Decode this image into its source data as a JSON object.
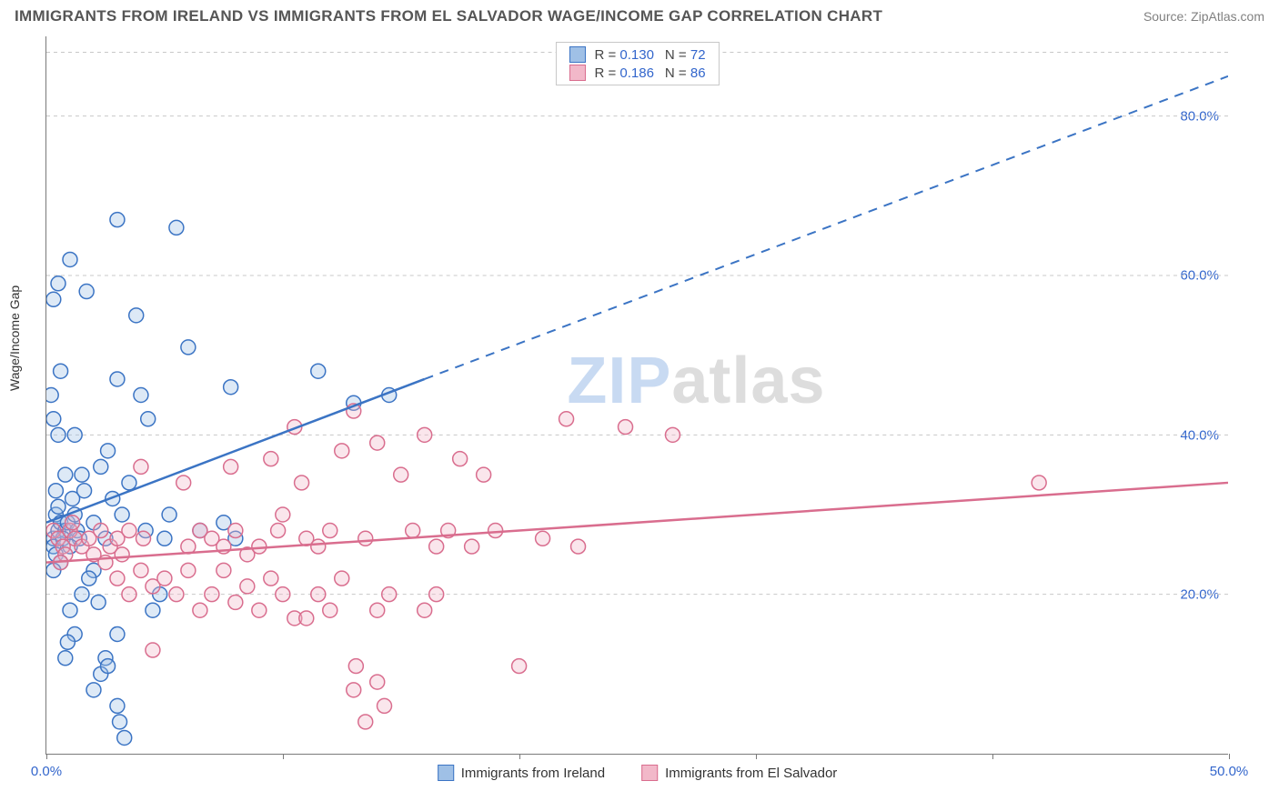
{
  "title": "IMMIGRANTS FROM IRELAND VS IMMIGRANTS FROM EL SALVADOR WAGE/INCOME GAP CORRELATION CHART",
  "source_label": "Source: ",
  "source_value": "ZipAtlas.com",
  "y_axis_label": "Wage/Income Gap",
  "watermark": {
    "part1": "ZIP",
    "part2": "atlas"
  },
  "chart": {
    "type": "scatter",
    "background_color": "#ffffff",
    "grid_color": "#c8c8c8",
    "axis_color": "#7a7a7a",
    "tick_label_color": "#3366cc",
    "xlim": [
      0,
      50
    ],
    "ylim": [
      0,
      90
    ],
    "x_ticks": [
      0,
      10,
      20,
      30,
      40,
      50
    ],
    "x_tick_labels": [
      "0.0%",
      "",
      "",
      "",
      "",
      "50.0%"
    ],
    "y_ticks": [
      20,
      40,
      60,
      80
    ],
    "y_tick_labels": [
      "20.0%",
      "40.0%",
      "60.0%",
      "80.0%"
    ],
    "marker_radius": 8,
    "marker_stroke_width": 1.5,
    "marker_fill_opacity": 0.35,
    "line_width": 2.5
  },
  "series": {
    "ireland": {
      "label": "Immigrants from Ireland",
      "color_stroke": "#3b74c4",
      "color_fill": "#9fc0e6",
      "R": "0.130",
      "N": "72",
      "trend_solid": {
        "x1": 0,
        "y1": 29,
        "x2": 16,
        "y2": 47
      },
      "trend_dashed": {
        "x1": 16,
        "y1": 47,
        "x2": 50,
        "y2": 85
      },
      "points": [
        [
          0.3,
          27
        ],
        [
          0.5,
          28
        ],
        [
          0.4,
          30
        ],
        [
          0.6,
          29
        ],
        [
          0.8,
          28
        ],
        [
          0.3,
          26
        ],
        [
          0.5,
          31
        ],
        [
          0.7,
          27
        ],
        [
          0.4,
          33
        ],
        [
          0.9,
          29
        ],
        [
          0.3,
          57
        ],
        [
          0.5,
          59
        ],
        [
          1.0,
          62
        ],
        [
          1.2,
          30
        ],
        [
          1.3,
          28
        ],
        [
          1.1,
          32
        ],
        [
          0.4,
          25
        ],
        [
          0.6,
          24
        ],
        [
          0.3,
          23
        ],
        [
          1.4,
          27
        ],
        [
          1.0,
          26
        ],
        [
          0.8,
          35
        ],
        [
          1.5,
          35
        ],
        [
          1.6,
          33
        ],
        [
          1.2,
          40
        ],
        [
          0.5,
          40
        ],
        [
          0.3,
          42
        ],
        [
          0.2,
          45
        ],
        [
          0.6,
          48
        ],
        [
          2.3,
          36
        ],
        [
          2.6,
          38
        ],
        [
          2.0,
          29
        ],
        [
          2.5,
          27
        ],
        [
          2.8,
          32
        ],
        [
          3.0,
          67
        ],
        [
          3.2,
          30
        ],
        [
          3.5,
          34
        ],
        [
          4.0,
          45
        ],
        [
          4.3,
          42
        ],
        [
          4.2,
          28
        ],
        [
          3.8,
          55
        ],
        [
          1.7,
          58
        ],
        [
          3.0,
          47
        ],
        [
          5.5,
          66
        ],
        [
          5.2,
          30
        ],
        [
          5.0,
          27
        ],
        [
          6.0,
          51
        ],
        [
          6.5,
          28
        ],
        [
          7.8,
          46
        ],
        [
          7.5,
          29
        ],
        [
          8.0,
          27
        ],
        [
          11.5,
          48
        ],
        [
          13.0,
          44
        ],
        [
          14.5,
          45
        ],
        [
          1.0,
          18
        ],
        [
          1.2,
          15
        ],
        [
          1.5,
          20
        ],
        [
          2.0,
          23
        ],
        [
          0.8,
          12
        ],
        [
          0.9,
          14
        ],
        [
          2.0,
          8
        ],
        [
          2.3,
          10
        ],
        [
          2.5,
          12
        ],
        [
          2.6,
          11
        ],
        [
          3.0,
          6
        ],
        [
          3.1,
          4
        ],
        [
          3.3,
          2
        ],
        [
          3.0,
          15
        ],
        [
          1.8,
          22
        ],
        [
          2.2,
          19
        ],
        [
          4.5,
          18
        ],
        [
          4.8,
          20
        ]
      ]
    },
    "elsalvador": {
      "label": "Immigrants from El Salvador",
      "color_stroke": "#d96d8e",
      "color_fill": "#f2b8c9",
      "R": "0.186",
      "N": "86",
      "trend_solid": {
        "x1": 0,
        "y1": 24,
        "x2": 50,
        "y2": 34
      },
      "trend_dashed": null,
      "points": [
        [
          0.3,
          28
        ],
        [
          0.5,
          27
        ],
        [
          0.7,
          26
        ],
        [
          1.0,
          28
        ],
        [
          0.8,
          25
        ],
        [
          1.2,
          27
        ],
        [
          0.6,
          24
        ],
        [
          1.1,
          29
        ],
        [
          1.5,
          26
        ],
        [
          1.8,
          27
        ],
        [
          2.0,
          25
        ],
        [
          2.3,
          28
        ],
        [
          2.5,
          24
        ],
        [
          2.7,
          26
        ],
        [
          3.0,
          27
        ],
        [
          3.2,
          25
        ],
        [
          3.5,
          28
        ],
        [
          4.1,
          27
        ],
        [
          4.0,
          36
        ],
        [
          5.8,
          34
        ],
        [
          6.0,
          26
        ],
        [
          6.5,
          28
        ],
        [
          7.0,
          27
        ],
        [
          7.5,
          26
        ],
        [
          7.8,
          36
        ],
        [
          8.0,
          28
        ],
        [
          8.5,
          25
        ],
        [
          9.0,
          26
        ],
        [
          9.5,
          37
        ],
        [
          9.8,
          28
        ],
        [
          10.0,
          30
        ],
        [
          10.5,
          41
        ],
        [
          10.8,
          34
        ],
        [
          11.0,
          27
        ],
        [
          11.5,
          26
        ],
        [
          12.0,
          28
        ],
        [
          12.5,
          38
        ],
        [
          13.0,
          43
        ],
        [
          13.5,
          27
        ],
        [
          14.0,
          39
        ],
        [
          15.0,
          35
        ],
        [
          15.5,
          28
        ],
        [
          16.0,
          40
        ],
        [
          16.5,
          26
        ],
        [
          17.0,
          28
        ],
        [
          17.5,
          37
        ],
        [
          18.0,
          26
        ],
        [
          18.5,
          35
        ],
        [
          19.0,
          28
        ],
        [
          21.0,
          27
        ],
        [
          22.0,
          42
        ],
        [
          22.5,
          26
        ],
        [
          24.5,
          41
        ],
        [
          26.5,
          40
        ],
        [
          42.0,
          34
        ],
        [
          3.0,
          22
        ],
        [
          3.5,
          20
        ],
        [
          4.0,
          23
        ],
        [
          4.5,
          21
        ],
        [
          5.0,
          22
        ],
        [
          5.5,
          20
        ],
        [
          6.0,
          23
        ],
        [
          6.5,
          18
        ],
        [
          7.0,
          20
        ],
        [
          7.5,
          23
        ],
        [
          8.0,
          19
        ],
        [
          8.5,
          21
        ],
        [
          9.0,
          18
        ],
        [
          9.5,
          22
        ],
        [
          10.0,
          20
        ],
        [
          10.5,
          17
        ],
        [
          11.0,
          17
        ],
        [
          11.5,
          20
        ],
        [
          12.0,
          18
        ],
        [
          12.5,
          22
        ],
        [
          14.0,
          18
        ],
        [
          14.5,
          20
        ],
        [
          16.0,
          18
        ],
        [
          16.5,
          20
        ],
        [
          13.0,
          8
        ],
        [
          13.1,
          11
        ],
        [
          13.5,
          4
        ],
        [
          14.0,
          9
        ],
        [
          14.3,
          6
        ],
        [
          20.0,
          11
        ],
        [
          4.5,
          13
        ]
      ]
    }
  },
  "legend_top": {
    "r_prefix": "R = ",
    "n_prefix": "N = "
  }
}
